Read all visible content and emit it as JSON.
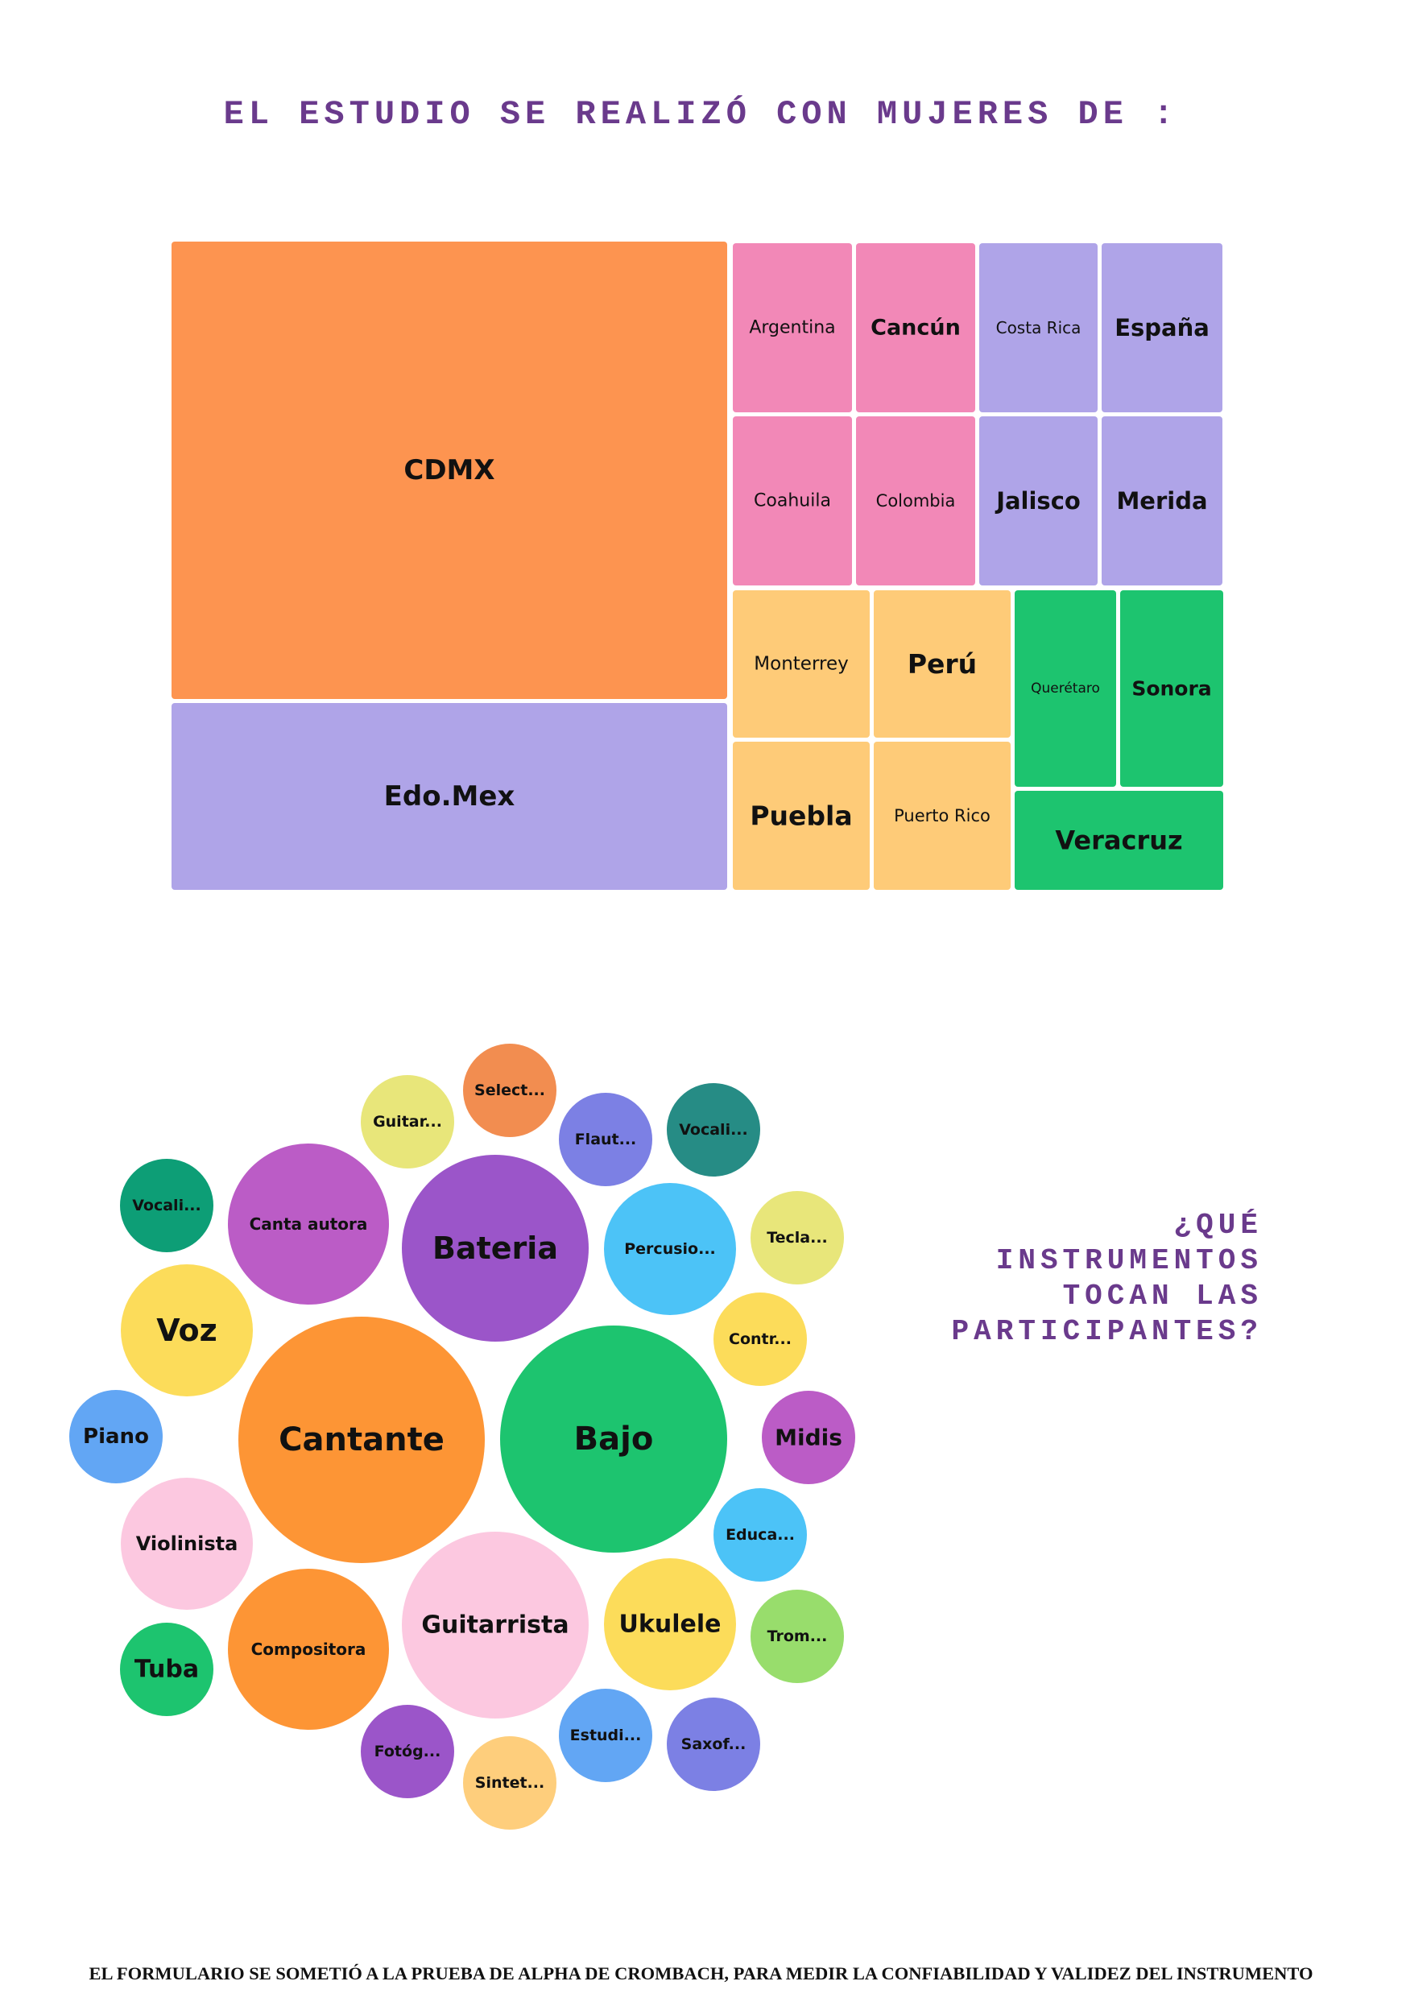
{
  "title_regions": "EL ESTUDIO SE REALIZÓ CON MUJERES DE :",
  "title_instruments": "¿QUÉ INSTRUMENTOS\nTOCAN LAS\nPARTICIPANTES?",
  "footer": "EL FORMULARIO SE SOMETIÓ A LA PRUEBA DE ALPHA DE CROMBACH, PARA MEDIR LA CONFIABILIDAD Y VALIDEZ DEL INSTRUMENTO",
  "chart_data": [
    {
      "type": "treemap",
      "colors": {
        "orange": "#fd9450",
        "pink": "#f288b7",
        "lavender": "#afa4e8",
        "yellow": "#fecb78",
        "green": "#1dc46f"
      },
      "items": [
        {
          "label": "CDMX",
          "color": "#fd9450"
        },
        {
          "label": "Edo.Mex",
          "color": "#afa4e8"
        },
        {
          "label": "Argentina",
          "color": "#f288b7"
        },
        {
          "label": "Cancún",
          "color": "#f288b7"
        },
        {
          "label": "Costa Rica",
          "color": "#afa4e8"
        },
        {
          "label": "España",
          "color": "#afa4e8"
        },
        {
          "label": "Coahuila",
          "color": "#f288b7"
        },
        {
          "label": "Colombia",
          "color": "#f288b7"
        },
        {
          "label": "Jalisco",
          "color": "#afa4e8"
        },
        {
          "label": "Merida",
          "color": "#afa4e8"
        },
        {
          "label": "Monterrey",
          "color": "#fecb78"
        },
        {
          "label": "Perú",
          "color": "#fecb78"
        },
        {
          "label": "Puebla",
          "color": "#fecb78"
        },
        {
          "label": "Puerto Rico",
          "color": "#fecb78"
        },
        {
          "label": "Querétaro",
          "color": "#1dc46f"
        },
        {
          "label": "Sonora",
          "color": "#1dc46f"
        },
        {
          "label": "Veracruz",
          "color": "#1dc46f"
        }
      ]
    },
    {
      "type": "bubble",
      "items": [
        {
          "label": "Cantante",
          "color": "#fd9535"
        },
        {
          "label": "Bajo",
          "color": "#1dc46f"
        },
        {
          "label": "Bateria",
          "color": "#9b55c9"
        },
        {
          "label": "Guitarrista",
          "color": "#fcc8e0"
        },
        {
          "label": "Canta autora",
          "color": "#bb5cc6"
        },
        {
          "label": "Compositora",
          "color": "#fd9535"
        },
        {
          "label": "Voz",
          "color": "#fcdc5a"
        },
        {
          "label": "Ukulele",
          "color": "#fcdc5a"
        },
        {
          "label": "Percusio...",
          "color": "#4cc3f7"
        },
        {
          "label": "Violinista",
          "color": "#fcc8e0"
        },
        {
          "label": "Select...",
          "color": "#f28d50"
        },
        {
          "label": "Guitar...",
          "color": "#e8e67a"
        },
        {
          "label": "Flaut...",
          "color": "#7c80e4"
        },
        {
          "label": "Vocali...",
          "color": "#268c85"
        },
        {
          "label": "Vocali...",
          "color": "#0d9e76"
        },
        {
          "label": "Tecla...",
          "color": "#e8e67a"
        },
        {
          "label": "Contr...",
          "color": "#fcdc5a"
        },
        {
          "label": "Piano",
          "color": "#62a6f4"
        },
        {
          "label": "Midis",
          "color": "#bb5cc6"
        },
        {
          "label": "Educa...",
          "color": "#4cc3f7"
        },
        {
          "label": "Trom...",
          "color": "#98dd6c"
        },
        {
          "label": "Tuba",
          "color": "#1dc46f"
        },
        {
          "label": "Estudi...",
          "color": "#62a6f4"
        },
        {
          "label": "Saxof...",
          "color": "#7c80e4"
        },
        {
          "label": "Fotóg...",
          "color": "#9b55c9"
        },
        {
          "label": "Sintet...",
          "color": "#fece7c"
        }
      ]
    }
  ]
}
